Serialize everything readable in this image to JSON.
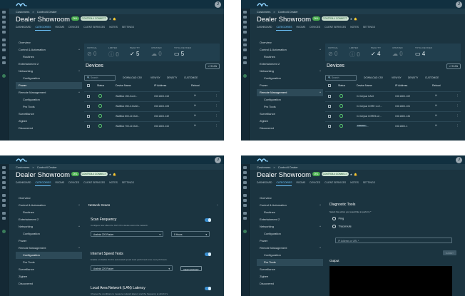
{
  "colors": {
    "background": "#1b3440",
    "topbar": "#113040",
    "accent": "#6ec6ff",
    "ok": "#4caf50"
  },
  "user_initial": "J",
  "breadcrumb": {
    "root": "Customers",
    "separator": ">",
    "current": "Control4 Dealer"
  },
  "page": {
    "title": "Dealer Showroom",
    "badge_status": "ONL",
    "badge_conn": "CONTROL4 CONNECT"
  },
  "tabs": [
    "DASHBOARD",
    "CATEGORIES",
    "ROOMS",
    "DEVICES",
    "CLIENT SERVICES",
    "NOTES",
    "SETTINGS"
  ],
  "nav_items": [
    "Overview",
    "Control & Automation",
    "Routines",
    "Entertainment 2",
    "Networking",
    "Configuration",
    "Power",
    "Remote Management",
    "Configuration",
    "Pro Tools",
    "Surveillance",
    "Zigbee",
    "Discovered"
  ],
  "panel1": {
    "stats": [
      {
        "label": "CRITICAL",
        "value": "0"
      },
      {
        "label": "LIMITED",
        "value": "0"
      },
      {
        "label": "HEALTHY",
        "value": "5"
      },
      {
        "label": "UPDATED",
        "value": "0"
      },
      {
        "label": "TOTAL DEVICES",
        "value": "5"
      }
    ],
    "devices_title": "Devices",
    "scan_label": "SCAN",
    "search_placeholder": "Search",
    "toolbar": [
      "DOWNLOAD CSV",
      "VIEW BY",
      "DENSITY",
      "CUSTOMIZE"
    ],
    "columns": [
      "Status",
      "Device Name",
      "IP Address",
      "Reboot"
    ],
    "rows": [
      {
        "name": "WattBox 150-Contr...",
        "ip": "192.168.1.118"
      },
      {
        "name": "WattBox 250-2-Outlet...",
        "ip": "192.168.1.105"
      },
      {
        "name": "WattBox 800-12-Outl...",
        "ip": "192.168.1.132"
      },
      {
        "name": "WattBox 700-12-Outl...",
        "ip": "192.168.1.116"
      }
    ]
  },
  "panel2": {
    "stats": [
      {
        "label": "CRITICAL",
        "value": "0"
      },
      {
        "label": "LIMITED",
        "value": "0"
      },
      {
        "label": "HEALTHY",
        "value": "4"
      },
      {
        "label": "UPDATED",
        "value": "0"
      },
      {
        "label": "TOTAL DEVICES",
        "value": "4"
      }
    ],
    "devices_title": "Devices",
    "scan_label": "SCAN",
    "search_placeholder": "Search",
    "toolbar": [
      "DOWNLOAD CSV",
      "VIEW BY",
      "DENSITY",
      "CUSTOMIZE"
    ],
    "columns": [
      "Status",
      "Device Name",
      "IP Address",
      "Reboot"
    ],
    "rows": [
      {
        "name": "C4 Ubyssi CA10",
        "ip": "192.168.1.102"
      },
      {
        "name": "C4 Ubyssi CORE 1-v2...",
        "ip": "192.168.1.101"
      },
      {
        "name": "C4 Ubyssi CORE5-v2...",
        "ip": "192.168.1.134"
      },
      {
        "name": "Araknis 2...",
        "tag": "PRIMARY",
        "ip": "192.168.1.1"
      }
    ]
  },
  "panel3": {
    "section": "Network Scans",
    "scan_freq_title": "Scan Frequency",
    "scan_freq_desc": "Configure how often the OvrC Pro device scans the network.",
    "scan_device": "Araknis 220 Router",
    "scan_interval": "8 Hours",
    "speed_title": "Internet Speed Tests",
    "speed_desc": "Enable or disable OvrC's automated speed tests performed once every 24 hours.",
    "speed_device": "Araknis 220 Router",
    "view_history": "VIEW HISTORY",
    "lan_title": "Local Area Network (LAN) Latency",
    "lan_desc": "Choose the conditions to measure network latency and the frequency at which it's"
  },
  "panel4": {
    "title": "Diagnostic Tools",
    "prompt": "Select the action you would like to perform *",
    "options": [
      "Ping",
      "Traceroute"
    ],
    "input_placeholder": "IP Address or URL *",
    "run_label": "SUBMIT",
    "output_label": "Output"
  }
}
